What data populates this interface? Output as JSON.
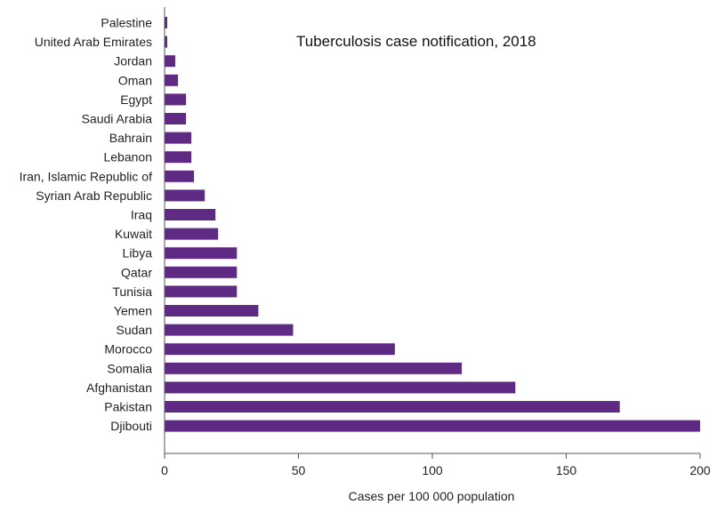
{
  "colors": {
    "bar": "#5e2a84",
    "axis": "#555555",
    "text": "#222222"
  },
  "chart_data": {
    "type": "bar",
    "orientation": "horizontal",
    "title": "Tuberculosis case notification, 2018",
    "xlabel": "Cases per 100 000 population",
    "ylabel": "",
    "xlim": [
      0,
      200
    ],
    "xticks": [
      0,
      50,
      100,
      150,
      200
    ],
    "grid": false,
    "categories": [
      "Palestine",
      "United Arab Emirates",
      "Jordan",
      "Oman",
      "Egypt",
      "Saudi Arabia",
      "Bahrain",
      "Lebanon",
      "Iran, Islamic Republic of",
      "Syrian Arab Republic",
      "Iraq",
      "Kuwait",
      "Libya",
      "Qatar",
      "Tunisia",
      "Yemen",
      "Sudan",
      "Morocco",
      "Somalia",
      "Afghanistan",
      "Pakistan",
      "Djibouti"
    ],
    "values": [
      1,
      1,
      4,
      5,
      8,
      8,
      10,
      10,
      11,
      15,
      19,
      20,
      27,
      27,
      27,
      35,
      48,
      86,
      111,
      131,
      170,
      200
    ]
  }
}
